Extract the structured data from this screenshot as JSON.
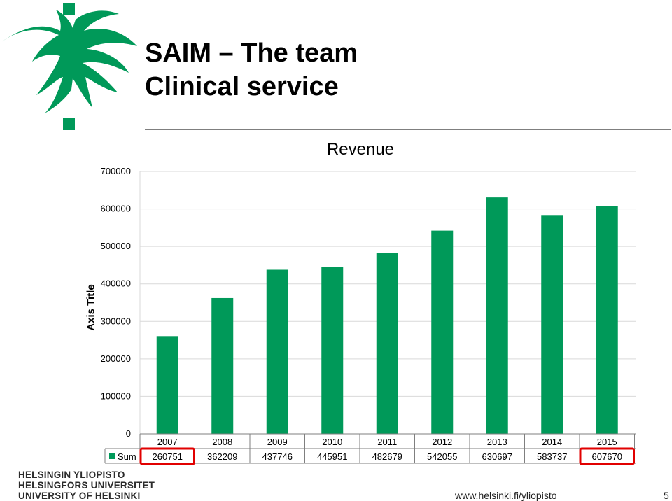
{
  "slide": {
    "title_line1": "SAIM – The team",
    "title_line2": "Clinical service",
    "url": "www.helsinki.fi/yliopisto",
    "page_number": "5"
  },
  "university": {
    "line1": "HELSINGIN YLIOPISTO",
    "line2": "HELSINGFORS UNIVERSITET",
    "line3": "UNIVERSITY OF HELSINKI"
  },
  "colors": {
    "brand_green": "#009959",
    "bar_green": "#009959",
    "highlight_red": "#e10000",
    "gridline": "#d9d9d9"
  },
  "chart_data": {
    "type": "bar",
    "title": "Revenue",
    "xlabel": "",
    "ylabel": "Axis Title",
    "ylim": [
      0,
      700000
    ],
    "yticks": [
      0,
      100000,
      200000,
      300000,
      400000,
      500000,
      600000,
      700000
    ],
    "tick_labels": [
      "0",
      "100000",
      "200000",
      "300000",
      "400000",
      "500000",
      "600000",
      "700000"
    ],
    "grid": true,
    "categories": [
      "2007",
      "2008",
      "2009",
      "2010",
      "2011",
      "2012",
      "2013",
      "2014",
      "2015"
    ],
    "series": [
      {
        "name": "Sum",
        "values": [
          260751,
          362209,
          437746,
          445951,
          482679,
          542055,
          630697,
          583737,
          607670
        ],
        "labels": [
          "260751",
          "362209",
          "437746",
          "445951",
          "482679",
          "542055",
          "630697",
          "583737",
          "607670"
        ]
      }
    ],
    "data_table": true,
    "highlighted_categories": [
      "2007",
      "2015"
    ]
  }
}
